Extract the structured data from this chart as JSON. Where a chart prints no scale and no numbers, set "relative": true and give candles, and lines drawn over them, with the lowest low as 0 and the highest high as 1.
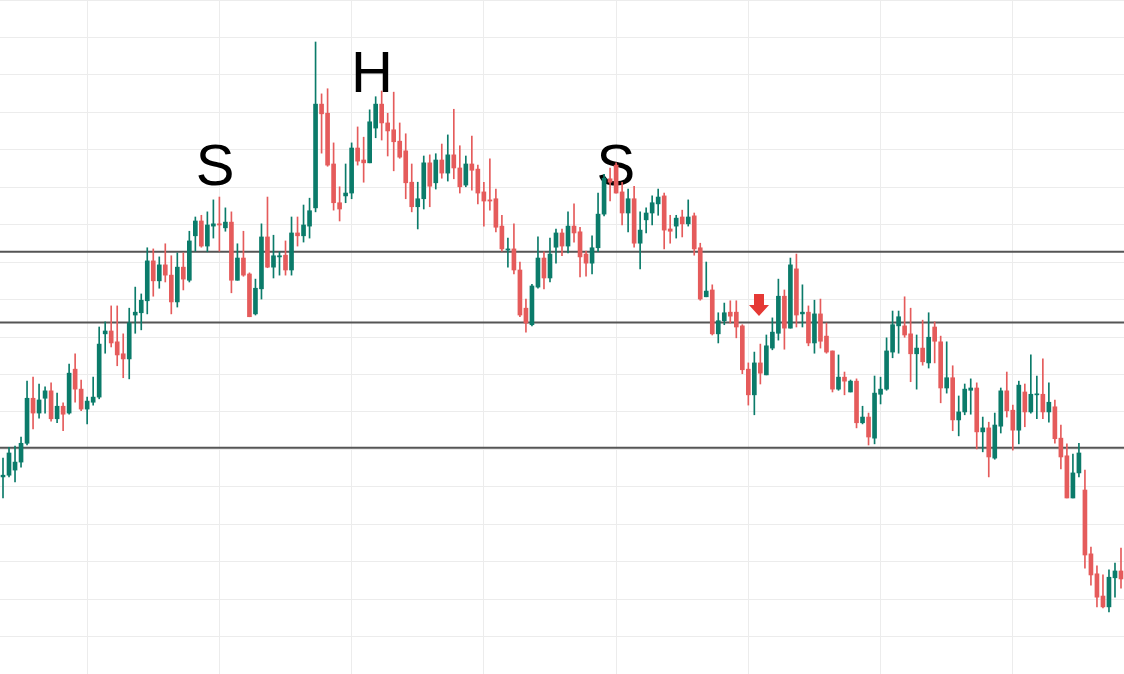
{
  "chart_data": {
    "type": "candlestick",
    "relative": true,
    "grid": true,
    "annotations": [
      "S",
      "H",
      "S"
    ],
    "ref_lines": [
      {
        "axis": "y",
        "value": 0.632,
        "color": "#555555"
      },
      {
        "axis": "y",
        "value": 0.508,
        "color": "#555555"
      },
      {
        "axis": "y",
        "value": 0.288,
        "color": "#555555"
      }
    ],
    "categories": [
      null,
      null,
      null,
      null,
      null,
      null,
      null,
      null,
      null,
      null,
      null,
      null,
      null,
      null,
      null,
      null,
      null,
      null,
      null,
      null,
      null,
      null,
      null,
      null,
      null,
      null,
      null,
      null,
      null,
      null,
      null,
      null,
      null,
      null,
      null,
      null,
      null,
      null,
      null,
      null,
      null,
      null,
      null,
      null,
      null,
      null,
      null,
      null,
      null,
      null,
      null,
      null,
      null,
      null,
      null,
      null,
      null,
      null,
      null,
      null,
      null,
      null,
      null,
      null,
      null,
      null,
      null,
      null,
      null,
      null,
      null,
      null,
      null,
      null,
      null,
      null,
      null,
      null,
      null,
      null,
      null,
      null,
      null,
      null,
      null,
      null,
      null,
      null,
      null,
      null,
      null,
      null,
      null,
      null,
      null,
      null,
      null,
      null,
      null,
      null,
      null,
      null,
      null,
      null,
      null,
      null,
      null,
      null,
      null,
      null,
      null,
      null,
      null,
      null,
      null,
      null,
      null,
      null,
      null,
      null,
      null,
      null,
      null,
      null,
      null,
      null,
      null,
      null,
      null,
      null,
      null,
      null,
      null,
      null,
      null,
      null,
      null,
      null,
      null,
      null,
      null,
      null,
      null,
      null,
      null,
      null,
      null,
      null,
      null,
      null,
      null,
      null,
      null,
      null,
      null,
      null,
      null,
      null,
      null,
      null,
      null,
      null,
      null,
      null,
      null,
      null,
      null,
      null,
      null,
      null,
      null,
      null,
      null,
      null,
      null,
      null,
      null,
      null,
      null,
      null,
      null,
      null,
      null,
      null,
      null,
      null,
      null
    ],
    "ohlc": [
      [
        0.237,
        0.27,
        0.2,
        0.24
      ],
      [
        0.24,
        0.289,
        0.237,
        0.279
      ],
      [
        0.249,
        0.291,
        0.228,
        0.263
      ],
      [
        0.263,
        0.307,
        0.254,
        0.296
      ],
      [
        0.296,
        0.405,
        0.293,
        0.375
      ],
      [
        0.375,
        0.412,
        0.321,
        0.349
      ],
      [
        0.349,
        0.4,
        0.34,
        0.372
      ],
      [
        0.375,
        0.395,
        0.349,
        0.388
      ],
      [
        0.388,
        0.402,
        0.335,
        0.339
      ],
      [
        0.339,
        0.384,
        0.332,
        0.361
      ],
      [
        0.361,
        0.367,
        0.318,
        0.347
      ],
      [
        0.349,
        0.435,
        0.347,
        0.419
      ],
      [
        0.426,
        0.453,
        0.368,
        0.391
      ],
      [
        0.391,
        0.407,
        0.353,
        0.356
      ],
      [
        0.356,
        0.377,
        0.33,
        0.37
      ],
      [
        0.368,
        0.412,
        0.363,
        0.377
      ],
      [
        0.377,
        0.5,
        0.374,
        0.47
      ],
      [
        0.488,
        0.509,
        0.454,
        0.493
      ],
      [
        0.493,
        0.537,
        0.465,
        0.472
      ],
      [
        0.474,
        0.537,
        0.432,
        0.451
      ],
      [
        0.453,
        0.488,
        0.411,
        0.444
      ],
      [
        0.444,
        0.533,
        0.409,
        0.507
      ],
      [
        0.521,
        0.57,
        0.489,
        0.526
      ],
      [
        0.525,
        0.558,
        0.495,
        0.547
      ],
      [
        0.546,
        0.639,
        0.523,
        0.616
      ],
      [
        0.616,
        0.637,
        0.554,
        0.581
      ],
      [
        0.581,
        0.623,
        0.568,
        0.609
      ],
      [
        0.609,
        0.646,
        0.579,
        0.591
      ],
      [
        0.591,
        0.625,
        0.523,
        0.544
      ],
      [
        0.544,
        0.63,
        0.535,
        0.605
      ],
      [
        0.605,
        0.63,
        0.565,
        0.584
      ],
      [
        0.582,
        0.668,
        0.579,
        0.651
      ],
      [
        0.66,
        0.693,
        0.633,
        0.686
      ],
      [
        0.686,
        0.696,
        0.64,
        0.642
      ],
      [
        0.642,
        0.702,
        0.632,
        0.679
      ],
      [
        0.677,
        0.723,
        0.656,
        0.681
      ],
      [
        0.681,
        0.728,
        0.633,
        0.679
      ],
      [
        0.674,
        0.709,
        0.668,
        0.684
      ],
      [
        0.684,
        0.702,
        0.56,
        0.582
      ],
      [
        0.582,
        0.646,
        0.582,
        0.621
      ],
      [
        0.621,
        0.668,
        0.589,
        0.591
      ],
      [
        0.593,
        0.595,
        0.518,
        0.518
      ],
      [
        0.523,
        0.584,
        0.521,
        0.568
      ],
      [
        0.567,
        0.681,
        0.549,
        0.658
      ],
      [
        0.658,
        0.728,
        0.604,
        0.605
      ],
      [
        0.605,
        0.661,
        0.586,
        0.625
      ],
      [
        0.623,
        0.632,
        0.591,
        0.625
      ],
      [
        0.626,
        0.651,
        0.591,
        0.6
      ],
      [
        0.6,
        0.693,
        0.591,
        0.665
      ],
      [
        0.665,
        0.693,
        0.642,
        0.66
      ],
      [
        0.66,
        0.714,
        0.649,
        0.679
      ],
      [
        0.677,
        0.726,
        0.656,
        0.704
      ],
      [
        0.709,
        1,
        0.702,
        0.891
      ],
      [
        0.891,
        0.909,
        0.805,
        0.874
      ],
      [
        0.875,
        0.918,
        0.782,
        0.784
      ],
      [
        0.786,
        0.823,
        0.705,
        0.718
      ],
      [
        0.718,
        0.746,
        0.686,
        0.707
      ],
      [
        0.73,
        0.786,
        0.718,
        0.735
      ],
      [
        0.735,
        0.823,
        0.725,
        0.814
      ],
      [
        0.814,
        0.851,
        0.784,
        0.791
      ],
      [
        0.793,
        0.833,
        0.754,
        0.788
      ],
      [
        0.788,
        0.881,
        0.788,
        0.86
      ],
      [
        0.849,
        0.904,
        0.832,
        0.891
      ],
      [
        0.891,
        0.914,
        0.828,
        0.858
      ],
      [
        0.858,
        0.875,
        0.8,
        0.844
      ],
      [
        0.846,
        0.912,
        0.774,
        0.825
      ],
      [
        0.826,
        0.858,
        0.796,
        0.798
      ],
      [
        0.809,
        0.839,
        0.725,
        0.753
      ],
      [
        0.754,
        0.786,
        0.702,
        0.711
      ],
      [
        0.711,
        0.754,
        0.672,
        0.725
      ],
      [
        0.725,
        0.8,
        0.707,
        0.788
      ],
      [
        0.788,
        0.802,
        0.711,
        0.747
      ],
      [
        0.753,
        0.804,
        0.742,
        0.793
      ],
      [
        0.793,
        0.821,
        0.761,
        0.77
      ],
      [
        0.77,
        0.837,
        0.756,
        0.802
      ],
      [
        0.802,
        0.882,
        0.76,
        0.779
      ],
      [
        0.779,
        0.818,
        0.735,
        0.746
      ],
      [
        0.749,
        0.8,
        0.746,
        0.786
      ],
      [
        0.786,
        0.835,
        0.74,
        0.775
      ],
      [
        0.777,
        0.784,
        0.716,
        0.735
      ],
      [
        0.737,
        0.754,
        0.677,
        0.721
      ],
      [
        0.723,
        0.795,
        0.705,
        0.721
      ],
      [
        0.725,
        0.742,
        0.667,
        0.675
      ],
      [
        0.677,
        0.696,
        0.633,
        0.637
      ],
      [
        0.635,
        0.656,
        0.605,
        0.637
      ],
      [
        0.637,
        0.681,
        0.593,
        0.6
      ],
      [
        0.6,
        0.614,
        0.518,
        0.521
      ],
      [
        0.533,
        0.549,
        0.491,
        0.507
      ],
      [
        0.504,
        0.575,
        0.502,
        0.572
      ],
      [
        0.57,
        0.658,
        0.568,
        0.621
      ],
      [
        0.621,
        0.632,
        0.567,
        0.586
      ],
      [
        0.586,
        0.656,
        0.579,
        0.628
      ],
      [
        0.64,
        0.672,
        0.612,
        0.665
      ],
      [
        0.665,
        0.672,
        0.625,
        0.642
      ],
      [
        0.642,
        0.702,
        0.63,
        0.677
      ],
      [
        0.677,
        0.716,
        0.649,
        0.665
      ],
      [
        0.667,
        0.675,
        0.588,
        0.623
      ],
      [
        0.628,
        0.633,
        0.589,
        0.612
      ],
      [
        0.612,
        0.66,
        0.593,
        0.639
      ],
      [
        0.639,
        0.735,
        0.632,
        0.698
      ],
      [
        0.698,
        0.768,
        0.695,
        0.761
      ],
      [
        0.76,
        0.779,
        0.721,
        0.754
      ],
      [
        0.784,
        0.788,
        0.735,
        0.735
      ],
      [
        0.737,
        0.754,
        0.679,
        0.7
      ],
      [
        0.7,
        0.742,
        0.667,
        0.725
      ],
      [
        0.725,
        0.747,
        0.64,
        0.647
      ],
      [
        0.647,
        0.702,
        0.602,
        0.67
      ],
      [
        0.688,
        0.709,
        0.665,
        0.7
      ],
      [
        0.7,
        0.73,
        0.679,
        0.718
      ],
      [
        0.716,
        0.742,
        0.696,
        0.728
      ],
      [
        0.73,
        0.735,
        0.637,
        0.67
      ],
      [
        0.672,
        0.696,
        0.647,
        0.668
      ],
      [
        0.677,
        0.696,
        0.656,
        0.691
      ],
      [
        0.693,
        0.705,
        0.658,
        0.681
      ],
      [
        0.681,
        0.723,
        0.677,
        0.693
      ],
      [
        0.695,
        0.7,
        0.626,
        0.637
      ],
      [
        0.639,
        0.647,
        0.547,
        0.549
      ],
      [
        0.553,
        0.614,
        0.553,
        0.563
      ],
      [
        0.565,
        0.574,
        0.486,
        0.488
      ],
      [
        0.488,
        0.525,
        0.472,
        0.511
      ],
      [
        0.511,
        0.542,
        0.504,
        0.525
      ],
      [
        0.526,
        0.546,
        0.507,
        0.519
      ],
      [
        0.526,
        0.546,
        0.481,
        0.5
      ],
      [
        0.502,
        0.504,
        0.418,
        0.425
      ],
      [
        0.426,
        0.437,
        0.363,
        0.381
      ],
      [
        0.381,
        0.456,
        0.346,
        0.437
      ],
      [
        0.437,
        0.47,
        0.4,
        0.419
      ],
      [
        0.416,
        0.486,
        0.416,
        0.467
      ],
      [
        0.463,
        0.516,
        0.46,
        0.491
      ],
      [
        0.489,
        0.584,
        0.477,
        0.554
      ],
      [
        0.554,
        0.565,
        0.461,
        0.498
      ],
      [
        0.498,
        0.621,
        0.498,
        0.609
      ],
      [
        0.602,
        0.628,
        0.5,
        0.521
      ],
      [
        0.523,
        0.574,
        0.5,
        0.526
      ],
      [
        0.526,
        0.537,
        0.467,
        0.472
      ],
      [
        0.472,
        0.547,
        0.454,
        0.523
      ],
      [
        0.523,
        0.549,
        0.463,
        0.475
      ],
      [
        0.484,
        0.507,
        0.454,
        0.456
      ],
      [
        0.458,
        0.458,
        0.386,
        0.391
      ],
      [
        0.391,
        0.451,
        0.389,
        0.412
      ],
      [
        0.412,
        0.421,
        0.381,
        0.405
      ],
      [
        0.386,
        0.407,
        0.386,
        0.405
      ],
      [
        0.405,
        0.409,
        0.323,
        0.332
      ],
      [
        0.332,
        0.361,
        0.33,
        0.342
      ],
      [
        0.342,
        0.349,
        0.293,
        0.307
      ],
      [
        0.305,
        0.414,
        0.295,
        0.384
      ],
      [
        0.382,
        0.412,
        0.365,
        0.391
      ],
      [
        0.391,
        0.481,
        0.389,
        0.458
      ],
      [
        0.456,
        0.528,
        0.446,
        0.504
      ],
      [
        0.502,
        0.528,
        0.454,
        0.518
      ],
      [
        0.502,
        0.553,
        0.482,
        0.486
      ],
      [
        0.488,
        0.533,
        0.404,
        0.453
      ],
      [
        0.453,
        0.486,
        0.391,
        0.463
      ],
      [
        0.463,
        0.512,
        0.433,
        0.439
      ],
      [
        0.437,
        0.525,
        0.428,
        0.482
      ],
      [
        0.5,
        0.509,
        0.437,
        0.475
      ],
      [
        0.474,
        0.484,
        0.367,
        0.393
      ],
      [
        0.393,
        0.474,
        0.384,
        0.411
      ],
      [
        0.411,
        0.432,
        0.318,
        0.337
      ],
      [
        0.337,
        0.379,
        0.309,
        0.351
      ],
      [
        0.351,
        0.4,
        0.346,
        0.391
      ],
      [
        0.389,
        0.409,
        0.347,
        0.393
      ],
      [
        0.393,
        0.402,
        0.286,
        0.316
      ],
      [
        0.316,
        0.342,
        0.281,
        0.323
      ],
      [
        0.323,
        0.333,
        0.237,
        0.272
      ],
      [
        0.27,
        0.349,
        0.268,
        0.328
      ],
      [
        0.326,
        0.393,
        0.314,
        0.388
      ],
      [
        0.388,
        0.421,
        0.342,
        0.353
      ],
      [
        0.354,
        0.363,
        0.284,
        0.319
      ],
      [
        0.319,
        0.405,
        0.295,
        0.398
      ],
      [
        0.386,
        0.4,
        0.325,
        0.351
      ],
      [
        0.351,
        0.451,
        0.349,
        0.382
      ],
      [
        0.381,
        0.414,
        0.339,
        0.382
      ],
      [
        0.382,
        0.444,
        0.339,
        0.351
      ],
      [
        0.351,
        0.402,
        0.333,
        0.368
      ],
      [
        0.36,
        0.372,
        0.296,
        0.304
      ],
      [
        0.305,
        0.328,
        0.251,
        0.272
      ],
      [
        0.274,
        0.295,
        0.2,
        0.2
      ],
      [
        0.2,
        0.277,
        0.2,
        0.244
      ],
      [
        0.244,
        0.296,
        0.237,
        0.279
      ],
      [
        0.214,
        0.249,
        0.077,
        0.1
      ],
      [
        0.102,
        0.114,
        0.047,
        0.065
      ],
      [
        0.067,
        0.081,
        0.009,
        0.026
      ],
      [
        0.028,
        0.065,
        0.007,
        0.009
      ],
      [
        0.009,
        0.074,
        0,
        0.061
      ],
      [
        0.06,
        0.086,
        0.026,
        0.072
      ],
      [
        0.072,
        0.112,
        0.042,
        0.058
      ]
    ],
    "colors": [
      "#0b7b6a",
      "#0b7b6a",
      "#0b7b6a",
      "#0b7b6a",
      "#0b7b6a",
      "#e55b5b",
      "#0b7b6a",
      "#0b7b6a",
      "#e55b5b",
      "#0b7b6a",
      "#e55b5b",
      "#0b7b6a",
      "#e55b5b",
      "#e55b5b",
      "#0b7b6a",
      "#0b7b6a",
      "#0b7b6a",
      "#0b7b6a",
      "#e55b5b",
      "#e55b5b",
      "#e55b5b",
      "#0b7b6a",
      "#0b7b6a",
      "#0b7b6a",
      "#0b7b6a",
      "#e55b5b",
      "#0b7b6a",
      "#e55b5b",
      "#e55b5b",
      "#0b7b6a",
      "#e55b5b",
      "#0b7b6a",
      "#0b7b6a",
      "#e55b5b",
      "#0b7b6a",
      "#0b7b6a",
      "#e55b5b",
      "#0b7b6a",
      "#e55b5b",
      "#0b7b6a",
      "#e55b5b",
      "#e55b5b",
      "#0b7b6a",
      "#0b7b6a",
      "#e55b5b",
      "#0b7b6a",
      "#0b7b6a",
      "#e55b5b",
      "#0b7b6a",
      "#e55b5b",
      "#0b7b6a",
      "#0b7b6a",
      "#0b7b6a",
      "#e55b5b",
      "#e55b5b",
      "#e55b5b",
      "#e55b5b",
      "#0b7b6a",
      "#0b7b6a",
      "#e55b5b",
      "#e55b5b",
      "#0b7b6a",
      "#0b7b6a",
      "#e55b5b",
      "#e55b5b",
      "#e55b5b",
      "#e55b5b",
      "#e55b5b",
      "#e55b5b",
      "#0b7b6a",
      "#0b7b6a",
      "#e55b5b",
      "#0b7b6a",
      "#e55b5b",
      "#0b7b6a",
      "#e55b5b",
      "#e55b5b",
      "#0b7b6a",
      "#e55b5b",
      "#e55b5b",
      "#e55b5b",
      "#e55b5b",
      "#e55b5b",
      "#e55b5b",
      "#0b7b6a",
      "#e55b5b",
      "#e55b5b",
      "#e55b5b",
      "#0b7b6a",
      "#0b7b6a",
      "#e55b5b",
      "#0b7b6a",
      "#0b7b6a",
      "#e55b5b",
      "#0b7b6a",
      "#e55b5b",
      "#e55b5b",
      "#e55b5b",
      "#0b7b6a",
      "#0b7b6a",
      "#0b7b6a",
      "#e55b5b",
      "#e55b5b",
      "#e55b5b",
      "#0b7b6a",
      "#e55b5b",
      "#0b7b6a",
      "#0b7b6a",
      "#0b7b6a",
      "#0b7b6a",
      "#e55b5b",
      "#e55b5b",
      "#0b7b6a",
      "#e55b5b",
      "#0b7b6a",
      "#e55b5b",
      "#e55b5b",
      "#0b7b6a",
      "#e55b5b",
      "#0b7b6a",
      "#0b7b6a",
      "#e55b5b",
      "#e55b5b",
      "#e55b5b",
      "#e55b5b",
      "#0b7b6a",
      "#e55b5b",
      "#0b7b6a",
      "#0b7b6a",
      "#0b7b6a",
      "#e55b5b",
      "#0b7b6a",
      "#e55b5b",
      "#0b7b6a",
      "#e55b5b",
      "#0b7b6a",
      "#e55b5b",
      "#e55b5b",
      "#e55b5b",
      "#0b7b6a",
      "#e55b5b",
      "#0b7b6a",
      "#e55b5b",
      "#0b7b6a",
      "#e55b5b",
      "#0b7b6a",
      "#0b7b6a",
      "#0b7b6a",
      "#0b7b6a",
      "#0b7b6a",
      "#e55b5b",
      "#e55b5b",
      "#0b7b6a",
      "#e55b5b",
      "#0b7b6a",
      "#e55b5b",
      "#e55b5b",
      "#0b7b6a",
      "#e55b5b",
      "#0b7b6a",
      "#0b7b6a",
      "#0b7b6a",
      "#e55b5b",
      "#0b7b6a",
      "#e55b5b",
      "#0b7b6a",
      "#0b7b6a",
      "#e55b5b",
      "#e55b5b",
      "#0b7b6a",
      "#e55b5b",
      "#0b7b6a",
      "#0b7b6a",
      "#e55b5b",
      "#0b7b6a",
      "#e55b5b",
      "#e55b5b",
      "#e55b5b",
      "#0b7b6a",
      "#0b7b6a",
      "#e55b5b",
      "#e55b5b",
      "#e55b5b",
      "#e55b5b",
      "#0b7b6a",
      "#0b7b6a",
      "#e55b5b"
    ]
  }
}
